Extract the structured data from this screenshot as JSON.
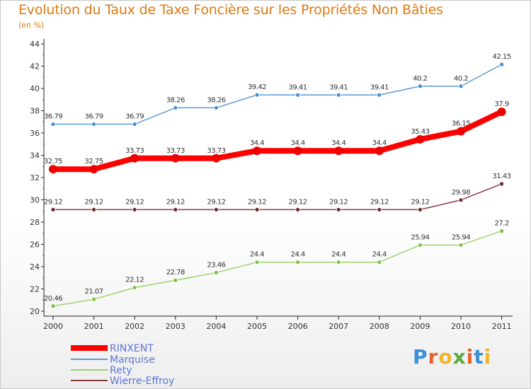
{
  "title": "Evolution du Taux de Taxe Foncière sur les Propriétés Non Bâties",
  "unit_label": "(en %)",
  "logo": {
    "text": "Proxiti",
    "colors": [
      "#3c8fd8",
      "#e8602c",
      "#f2b42a",
      "#5aa93e",
      "#e8602c",
      "#3c8fd8",
      "#f2b42a"
    ]
  },
  "chart_data": {
    "type": "line",
    "x": [
      "2000",
      "2001",
      "2002",
      "2003",
      "2004",
      "2005",
      "2006",
      "2007",
      "2008",
      "2009",
      "2010",
      "2011"
    ],
    "ylim": [
      20,
      44
    ],
    "yticks": [
      "20",
      "22",
      "24",
      "26",
      "28",
      "30",
      "32",
      "34",
      "36",
      "38",
      "40",
      "42",
      "44"
    ],
    "grid": false,
    "legend_position": "bottom-left",
    "series": [
      {
        "name": "Marquise",
        "color": "#5b9bd5",
        "marker": "#4a8ed0",
        "width": 1.5,
        "values": [
          36.79,
          36.79,
          36.79,
          38.26,
          38.26,
          39.42,
          39.41,
          39.41,
          39.41,
          40.2,
          40.2,
          42.15
        ],
        "labels": [
          "36.79",
          "36.79",
          "36.79",
          "38.26",
          "38.26",
          "39.42",
          "39.41",
          "39.41",
          "39.41",
          "40.2",
          "40.2",
          "42.15"
        ]
      },
      {
        "name": "Wierre-Effroy",
        "color": "#8a3b3b",
        "marker": "#6e2a2a",
        "width": 1.5,
        "values": [
          29.12,
          29.12,
          29.12,
          29.12,
          29.12,
          29.12,
          29.12,
          29.12,
          29.12,
          29.12,
          29.98,
          31.43
        ],
        "labels": [
          "29.12",
          "29.12",
          "29.12",
          "29.12",
          "29.12",
          "29.12",
          "29.12",
          "29.12",
          "29.12",
          "29.12",
          "29.98",
          "31.43"
        ]
      },
      {
        "name": "Rety",
        "color": "#9cd36a",
        "marker": "#7cc243",
        "width": 1.5,
        "values": [
          20.46,
          21.07,
          22.12,
          22.78,
          23.46,
          24.4,
          24.4,
          24.4,
          24.4,
          25.94,
          25.94,
          27.2
        ],
        "labels": [
          "20.46",
          "21.07",
          "22.12",
          "22.78",
          "23.46",
          "24.4",
          "24.4",
          "24.4",
          "24.4",
          "25.94",
          "25.94",
          "27.2"
        ]
      },
      {
        "name": "RINXENT",
        "color": "#ff0000",
        "marker": "#ee0000",
        "width": 8,
        "values": [
          32.75,
          32.75,
          33.73,
          33.73,
          33.73,
          34.4,
          34.4,
          34.4,
          34.4,
          35.43,
          36.15,
          37.9
        ],
        "labels": [
          "32.75",
          "32.75",
          "33.73",
          "33.73",
          "33.73",
          "34.4",
          "34.4",
          "34.4",
          "34.4",
          "35.43",
          "36.15",
          "37.9"
        ]
      }
    ],
    "legend": [
      "RINXENT",
      "Marquise",
      "Rety",
      "Wierre-Effroy"
    ]
  }
}
